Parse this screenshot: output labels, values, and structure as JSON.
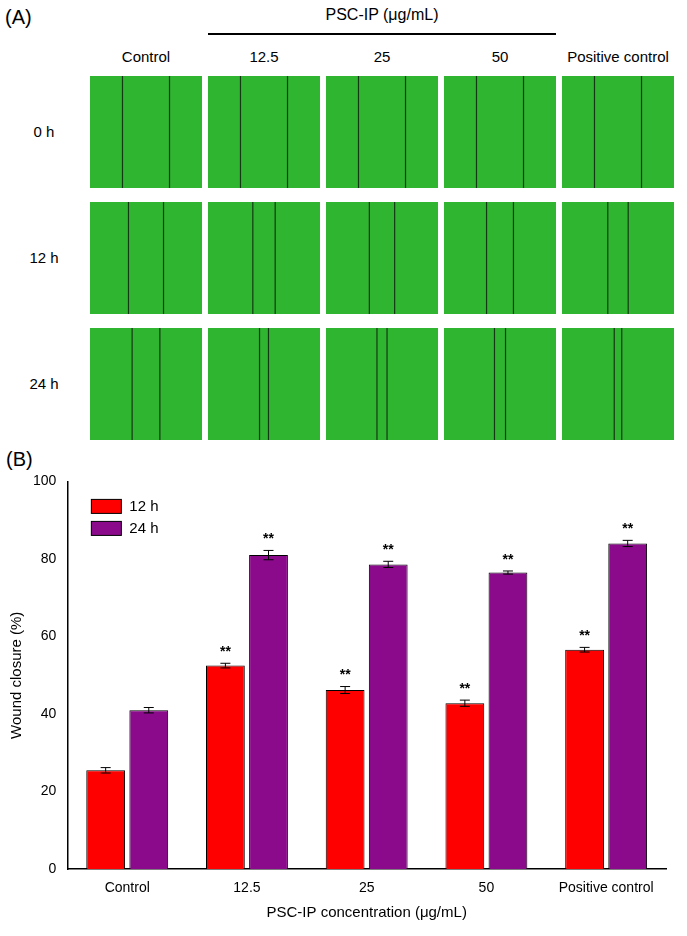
{
  "panel_a": {
    "letter": "(A)",
    "columns": [
      "Control",
      {
        "group": "PSC-IP (μg/mL)",
        "columns": [
          "12.5",
          "25",
          "50"
        ]
      },
      "Positive control"
    ],
    "rows": [
      "0 h",
      "12 h",
      "24 h"
    ]
  },
  "chart_data": {
    "type": "bar",
    "letter": "(B)",
    "categories": [
      "Control",
      "12.5",
      "25",
      "50",
      "Positive control"
    ],
    "series": [
      {
        "name": "12 h",
        "color": "#ff0000",
        "values": [
          25.5,
          52.5,
          46.2,
          42.8,
          56.6
        ],
        "errors": [
          0.7,
          0.6,
          0.9,
          0.8,
          0.6
        ],
        "significance": [
          null,
          "**",
          "**",
          "**",
          "**"
        ]
      },
      {
        "name": "24 h",
        "color": "#8b0a8b",
        "values": [
          41.0,
          81.0,
          78.6,
          76.5,
          84.0
        ],
        "errors": [
          0.7,
          1.2,
          0.8,
          0.4,
          0.8
        ],
        "significance": [
          null,
          "**",
          "**",
          "**",
          "**"
        ]
      }
    ],
    "x_label": "PSC-IP concentration (μg/mL)",
    "y_label": "Wound closure (%)",
    "ylim": [
      0,
      100
    ],
    "yticks": [
      0,
      20,
      40,
      60,
      80,
      100
    ],
    "grid": false,
    "legend": "upper left"
  }
}
